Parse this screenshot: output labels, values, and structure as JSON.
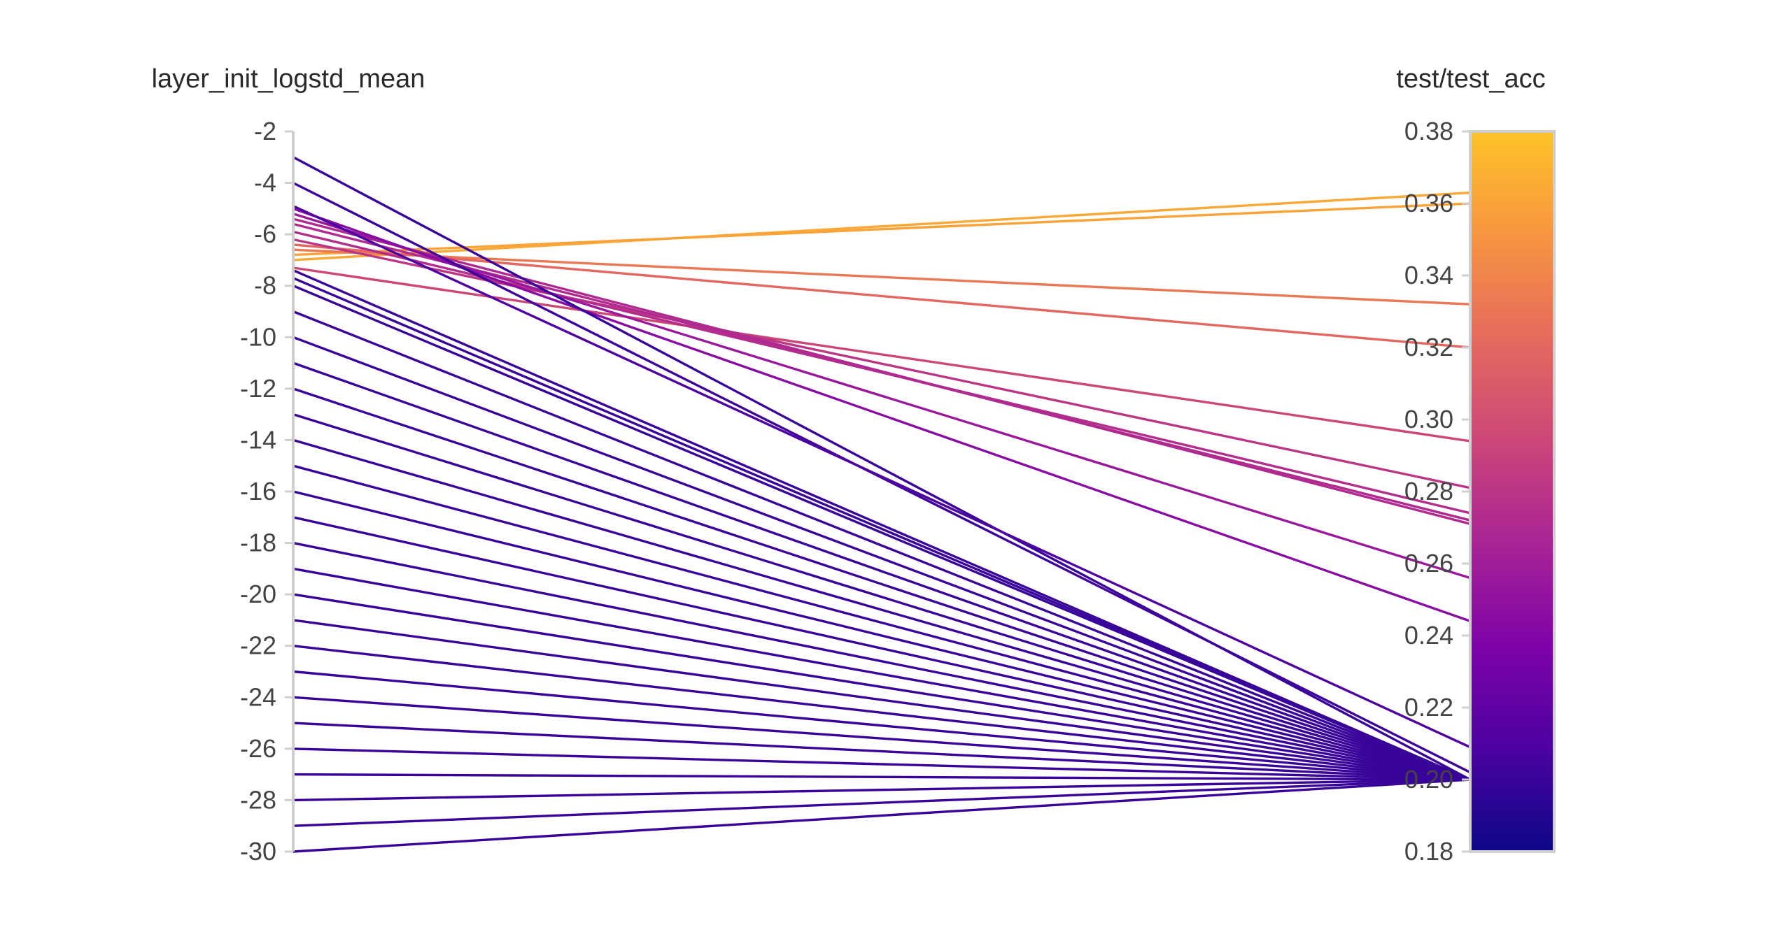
{
  "chart_data": {
    "type": "parallel_coordinates",
    "dimensions": [
      {
        "label": "layer_init_logstd_mean",
        "range": [
          -30,
          -2
        ],
        "ticks": [
          "-2",
          "-4",
          "-6",
          "-8",
          "-10",
          "-12",
          "-14",
          "-16",
          "-18",
          "-20",
          "-22",
          "-24",
          "-26",
          "-28",
          "-30"
        ],
        "tick_values": [
          -2,
          -4,
          -6,
          -8,
          -10,
          -12,
          -14,
          -16,
          -18,
          -20,
          -22,
          -24,
          -26,
          -28,
          -30
        ]
      },
      {
        "label": "test/test_acc",
        "range": [
          0.18,
          0.38
        ],
        "ticks": [
          "0.38",
          "0.36",
          "0.34",
          "0.32",
          "0.30",
          "0.28",
          "0.26",
          "0.24",
          "0.22",
          "0.20",
          "0.18"
        ],
        "tick_values": [
          0.38,
          0.36,
          0.34,
          0.32,
          0.3,
          0.28,
          0.26,
          0.24,
          0.22,
          0.2,
          0.18
        ]
      }
    ],
    "colorscale": {
      "dimension": "test/test_acc",
      "range": [
        0.18,
        0.38
      ],
      "stops": [
        "#0d0887",
        "#5302a3",
        "#8b0aa5",
        "#b83289",
        "#db5c68",
        "#f48849",
        "#febd2a",
        "#f0f921"
      ],
      "shown_stops": [
        "#0d0887",
        "#4c02a1",
        "#7e03a8",
        "#a92395",
        "#cc4778",
        "#e56b5d",
        "#f89540",
        "#fdc328"
      ]
    },
    "lines": [
      {
        "logstd": -7.0,
        "acc": 0.363
      },
      {
        "logstd": -6.8,
        "acc": 0.36
      },
      {
        "logstd": -6.6,
        "acc": 0.332
      },
      {
        "logstd": -6.4,
        "acc": 0.32
      },
      {
        "logstd": -7.3,
        "acc": 0.294
      },
      {
        "logstd": -6.2,
        "acc": 0.281
      },
      {
        "logstd": -5.9,
        "acc": 0.274
      },
      {
        "logstd": -5.6,
        "acc": 0.272
      },
      {
        "logstd": -5.4,
        "acc": 0.271
      },
      {
        "logstd": -5.2,
        "acc": 0.256
      },
      {
        "logstd": -5.0,
        "acc": 0.244
      },
      {
        "logstd": -3.0,
        "acc": 0.2
      },
      {
        "logstd": -4.0,
        "acc": 0.202
      },
      {
        "logstd": -4.9,
        "acc": 0.209
      },
      {
        "logstd": -7.4,
        "acc": 0.2
      },
      {
        "logstd": -7.7,
        "acc": 0.2
      },
      {
        "logstd": -8.0,
        "acc": 0.2
      },
      {
        "logstd": -9.0,
        "acc": 0.2
      },
      {
        "logstd": -10.0,
        "acc": 0.2
      },
      {
        "logstd": -11.0,
        "acc": 0.2
      },
      {
        "logstd": -12.0,
        "acc": 0.2
      },
      {
        "logstd": -13.0,
        "acc": 0.2
      },
      {
        "logstd": -14.0,
        "acc": 0.2
      },
      {
        "logstd": -15.0,
        "acc": 0.2
      },
      {
        "logstd": -16.0,
        "acc": 0.2
      },
      {
        "logstd": -17.0,
        "acc": 0.2
      },
      {
        "logstd": -18.0,
        "acc": 0.2
      },
      {
        "logstd": -19.0,
        "acc": 0.2
      },
      {
        "logstd": -20.0,
        "acc": 0.2
      },
      {
        "logstd": -21.0,
        "acc": 0.2
      },
      {
        "logstd": -22.0,
        "acc": 0.2
      },
      {
        "logstd": -23.0,
        "acc": 0.2
      },
      {
        "logstd": -24.0,
        "acc": 0.2
      },
      {
        "logstd": -25.0,
        "acc": 0.2
      },
      {
        "logstd": -26.0,
        "acc": 0.2
      },
      {
        "logstd": -27.0,
        "acc": 0.2
      },
      {
        "logstd": -28.0,
        "acc": 0.2
      },
      {
        "logstd": -29.0,
        "acc": 0.2
      },
      {
        "logstd": -30.0,
        "acc": 0.2
      }
    ]
  }
}
